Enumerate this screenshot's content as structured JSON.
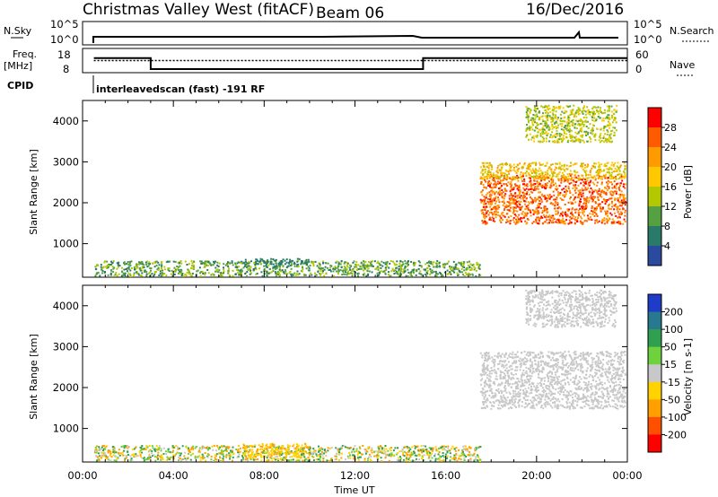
{
  "header": {
    "station": "Christmas Valley West (fitACF)",
    "beam": "Beam 06",
    "date": "16/Dec/2016"
  },
  "strip": {
    "nsky_label": "N.Sky",
    "nsearch_label": "N.Search",
    "nsky_ticks": [
      "10^5",
      "10^0"
    ],
    "nsearch_ticks": [
      "10^5",
      "10^0"
    ],
    "freq_label": "Freq.",
    "freq_unit": "[MHz]",
    "freq_ticks": [
      "18",
      "8"
    ],
    "nave_label": "Nave",
    "nave_ticks": [
      "60",
      "0"
    ],
    "cpid_label": "CPID",
    "cpid_text": "interleavedscan (fast) -191 RF"
  },
  "axes": {
    "ylabel": "Slant Range [km]",
    "xlabel": "Time UT",
    "x_ticks": [
      "00:00",
      "04:00",
      "08:00",
      "12:00",
      "16:00",
      "20:00",
      "00:00"
    ],
    "y_ticks": [
      "1000",
      "2000",
      "3000",
      "4000"
    ]
  },
  "colorbars": {
    "power": {
      "label": "Power [dB]",
      "ticks": [
        "28",
        "24",
        "20",
        "16",
        "12",
        "8",
        "4"
      ],
      "colors": [
        "#ff0000",
        "#ff5a00",
        "#ff9a00",
        "#ffc800",
        "#b4c800",
        "#55a040",
        "#2a7a6a",
        "#2a4aa0",
        "#0000ff"
      ]
    },
    "velocity": {
      "label": "Velocity [m s-1]",
      "ticks": [
        "200",
        "100",
        "50",
        "15",
        "-15",
        "-50",
        "-100",
        "-200"
      ],
      "colors": [
        "#1e3cc8",
        "#287890",
        "#2ea050",
        "#6ed23c",
        "#c8c8c8",
        "#ffd200",
        "#ffa000",
        "#ff5000",
        "#ff0000"
      ]
    }
  },
  "chart_data": [
    {
      "type": "heatmap",
      "name": "Power [dB]",
      "x_range": [
        "00:00",
        "24:00"
      ],
      "ylim": [
        180,
        4500
      ],
      "y_unit": "km",
      "regions": [
        {
          "x": [
            0.5,
            17.5
          ],
          "y": [
            180,
            600
          ],
          "value_range": [
            4,
            16
          ]
        },
        {
          "x": [
            7.0,
            10.0
          ],
          "y": [
            500,
            650
          ],
          "value": 6
        },
        {
          "x": [
            17.5,
            24.0
          ],
          "y": [
            1500,
            2700
          ],
          "value_range": [
            20,
            30
          ]
        },
        {
          "x": [
            17.5,
            24.0
          ],
          "y": [
            2600,
            3000
          ],
          "value_range": [
            14,
            22
          ]
        },
        {
          "x": [
            19.5,
            23.5
          ],
          "y": [
            3500,
            4400
          ],
          "value_range": [
            10,
            18
          ]
        }
      ]
    },
    {
      "type": "heatmap",
      "name": "Velocity [m s-1]",
      "x_range": [
        "00:00",
        "24:00"
      ],
      "ylim": [
        180,
        4500
      ],
      "y_unit": "km",
      "regions": [
        {
          "x": [
            0.5,
            17.5
          ],
          "y": [
            180,
            600
          ],
          "value_range": [
            -100,
            100
          ]
        },
        {
          "x": [
            7.0,
            10.0
          ],
          "y": [
            300,
            650
          ],
          "value_range": [
            -60,
            -20
          ]
        },
        {
          "x": [
            17.5,
            24.0
          ],
          "y": [
            1500,
            2900
          ],
          "value_range": [
            -15,
            15
          ]
        },
        {
          "x": [
            19.5,
            23.5
          ],
          "y": [
            3500,
            4400
          ],
          "value_range": [
            -15,
            15
          ]
        }
      ]
    },
    {
      "type": "line",
      "name": "Freq.",
      "x": [
        0.5,
        3.0,
        3.0,
        15.0,
        15.0,
        24.0
      ],
      "y": [
        14,
        14,
        9.5,
        9.5,
        14,
        14
      ],
      "ylim": [
        8,
        18
      ]
    },
    {
      "type": "line",
      "name": "Nave",
      "x": [
        0.5,
        24.0
      ],
      "y": [
        30,
        30
      ],
      "ylim": [
        0,
        60
      ]
    }
  ]
}
